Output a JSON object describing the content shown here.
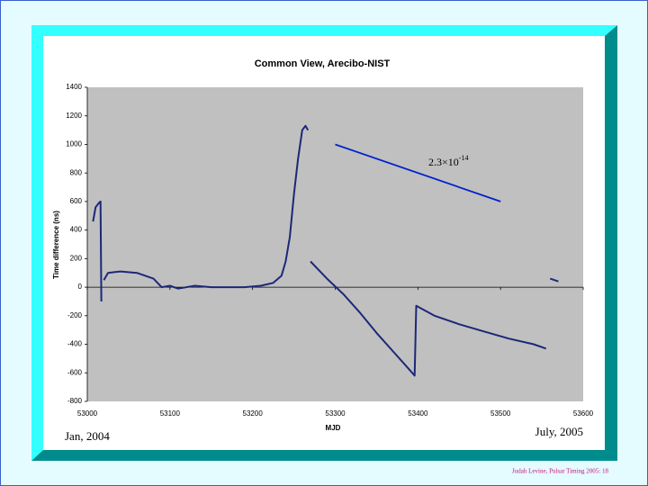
{
  "chart_data": {
    "type": "line",
    "title": "Common View, Arecibo-NIST",
    "y_label": "Time difference (ns)",
    "x_label": "MJD",
    "annotation": {
      "base": "2.3×10",
      "exponent": "-14"
    },
    "start_label": "Jan, 2004",
    "end_label": "July, 2005",
    "footer": "Judah Levine, Pulsar Timing 2005: 18",
    "xlim": [
      53000,
      53600
    ],
    "ylim": [
      -800,
      1400
    ],
    "xticks": [
      53000,
      53100,
      53200,
      53300,
      53400,
      53500,
      53600
    ],
    "yticks": [
      -800,
      -600,
      -400,
      -200,
      0,
      200,
      400,
      600,
      800,
      1000,
      1200,
      1400
    ],
    "grid": false,
    "series": [
      {
        "color": "#1c2878",
        "x": [
          53007,
          53010,
          53014,
          53016,
          53017,
          null,
          53020,
          53025,
          53040,
          53060,
          53080,
          53090,
          53100,
          53110,
          53130,
          53150,
          53170,
          53190,
          53210,
          53225,
          53235,
          53240,
          53245,
          53250,
          53255,
          53260,
          53264,
          53267,
          null,
          53270,
          53290,
          53310,
          53330,
          53350,
          53370,
          53390,
          53396,
          53398,
          53420,
          53450,
          53480,
          53510,
          53540,
          53555,
          null,
          53560,
          53570
        ],
        "values": [
          460,
          560,
          590,
          600,
          -100,
          null,
          50,
          100,
          110,
          100,
          60,
          0,
          10,
          -10,
          10,
          0,
          0,
          0,
          10,
          30,
          80,
          180,
          350,
          650,
          900,
          1100,
          1130,
          1100,
          null,
          180,
          60,
          -50,
          -180,
          -320,
          -450,
          -580,
          -620,
          -130,
          -200,
          -260,
          -310,
          -360,
          -400,
          -430,
          null,
          60,
          40
        ]
      },
      {
        "color": "#0022cc",
        "x": [
          53300,
          53500
        ],
        "values": [
          1000,
          600
        ]
      }
    ]
  }
}
